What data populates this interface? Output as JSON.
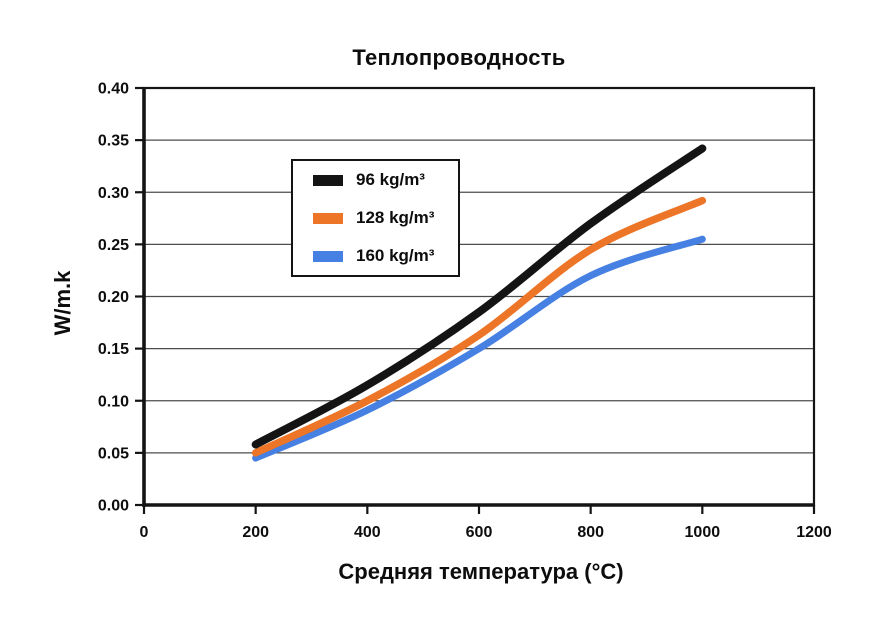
{
  "chart_data": {
    "type": "line",
    "title": "Теплопроводность",
    "xlabel": "Средняя температура (°C)",
    "ylabel": "W/m.k",
    "xlim": [
      0,
      1200
    ],
    "ylim": [
      0,
      0.4
    ],
    "x_ticks": [
      0,
      200,
      400,
      600,
      800,
      1000,
      1200
    ],
    "y_ticks": [
      0,
      0.05,
      0.1,
      0.15,
      0.2,
      0.25,
      0.3,
      0.35,
      0.4
    ],
    "y_tick_decimals": 2,
    "grid": "horizontal-only",
    "legend_position": "inside-upper-left",
    "background_color": "#ffffff",
    "axis_color": "#141414",
    "gridline_color": "#4d4d4d",
    "x": [
      200,
      400,
      600,
      800,
      1000
    ],
    "series": [
      {
        "name": "96 kg/m³",
        "color": "#141414",
        "line_width": 8,
        "values": [
          0.058,
          0.115,
          0.185,
          0.27,
          0.342
        ]
      },
      {
        "name": "128 kg/m³",
        "color": "#EC7527",
        "line_width": 7.5,
        "values": [
          0.05,
          0.1,
          0.163,
          0.245,
          0.292
        ]
      },
      {
        "name": "160 kg/m³",
        "color": "#4580E2",
        "line_width": 7,
        "values": [
          0.045,
          0.091,
          0.15,
          0.22,
          0.255
        ]
      }
    ]
  }
}
